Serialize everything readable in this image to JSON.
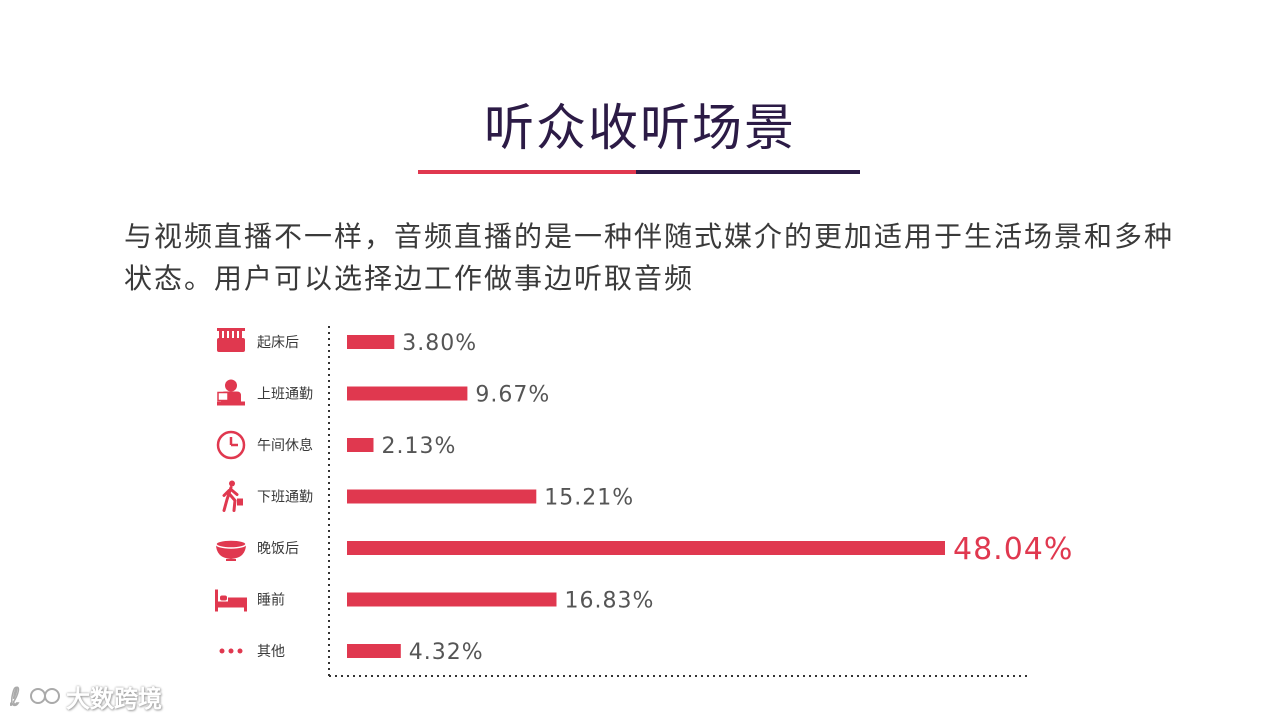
{
  "header": {
    "title": "听众收听场景",
    "description": "与视频直播不一样，音频直播的是一种伴随式媒介的更加适用于生活场景和多种状态。用户可以选择边工作做事边听取音频"
  },
  "colors": {
    "accent": "#e0384f",
    "dark": "#2c1b46",
    "text": "#3a3a3a"
  },
  "chart_data": {
    "type": "bar",
    "orientation": "horizontal",
    "categories": [
      "起床后",
      "上班通勤",
      "午间休息",
      "下班通勤",
      "晚饭后",
      "睡前",
      "其他"
    ],
    "icons": [
      "toothbrush-icon",
      "desk-worker-icon",
      "clock-icon",
      "walking-person-icon",
      "bowl-icon",
      "bed-icon",
      "more-dots-icon"
    ],
    "values": [
      3.8,
      9.67,
      2.13,
      15.21,
      48.04,
      16.83,
      4.32
    ],
    "value_labels": [
      "3.80%",
      "9.67%",
      "2.13%",
      "15.21%",
      "48.04%",
      "16.83%",
      "4.32%"
    ],
    "highlight_index": 4,
    "xlim": [
      0,
      50
    ],
    "grid": false,
    "legend": "none"
  },
  "watermark": {
    "text": "大数跨境"
  }
}
